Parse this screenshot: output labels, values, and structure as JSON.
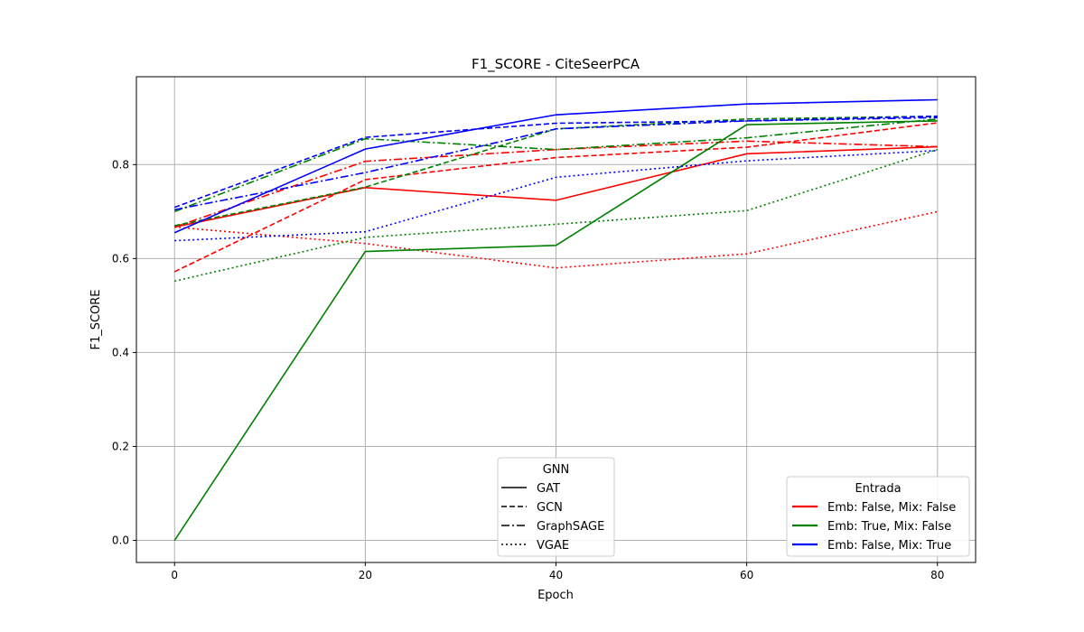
{
  "chart_data": {
    "type": "line",
    "title": "F1_SCORE - CiteSeerPCA",
    "xlabel": "Epoch",
    "ylabel": "F1_SCORE",
    "x": [
      0,
      20,
      40,
      60,
      80
    ],
    "xlim": [
      -4,
      84
    ],
    "ylim": [
      -0.047,
      0.987
    ],
    "xticks": [
      "0",
      "20",
      "40",
      "60",
      "80"
    ],
    "yticks": [
      "0.0",
      "0.2",
      "0.4",
      "0.6",
      "0.8"
    ],
    "grid": true,
    "legend_gnn": {
      "title": "GNN",
      "placement": "bottom-center",
      "entries": [
        {
          "label": "GAT",
          "style": "solid"
        },
        {
          "label": "GCN",
          "style": "dashed"
        },
        {
          "label": "GraphSAGE",
          "style": "dashdot"
        },
        {
          "label": "VGAE",
          "style": "dotted"
        }
      ]
    },
    "legend_entrada": {
      "title": "Entrada",
      "placement": "lower-right",
      "entries": [
        {
          "label": "Emb: False, Mix: False",
          "color": "#ff0000"
        },
        {
          "label": "Emb: True, Mix: False",
          "color": "#008000"
        },
        {
          "label": "Emb: False, Mix: True",
          "color": "#0000ff"
        }
      ]
    },
    "series": [
      {
        "gnn": "GAT",
        "entrada": "Emb: False, Mix: False",
        "color": "#ff0000",
        "style": "solid",
        "values": [
          0.667,
          0.751,
          0.724,
          0.823,
          0.838
        ]
      },
      {
        "gnn": "GCN",
        "entrada": "Emb: False, Mix: False",
        "color": "#ff0000",
        "style": "dashed",
        "values": [
          0.572,
          0.768,
          0.815,
          0.837,
          0.889
        ]
      },
      {
        "gnn": "GraphSAGE",
        "entrada": "Emb: False, Mix: False",
        "color": "#ff0000",
        "style": "dashdot",
        "values": [
          0.667,
          0.807,
          0.832,
          0.85,
          0.838
        ]
      },
      {
        "gnn": "VGAE",
        "entrada": "Emb: False, Mix: False",
        "color": "#ff0000",
        "style": "dotted",
        "values": [
          0.667,
          0.632,
          0.58,
          0.61,
          0.7
        ]
      },
      {
        "gnn": "GAT",
        "entrada": "Emb: True, Mix: False",
        "color": "#008000",
        "style": "solid",
        "values": [
          0.0,
          0.615,
          0.628,
          0.885,
          0.893
        ]
      },
      {
        "gnn": "GCN",
        "entrada": "Emb: True, Mix: False",
        "color": "#008000",
        "style": "dashed",
        "values": [
          0.67,
          0.752,
          0.876,
          0.897,
          0.903
        ]
      },
      {
        "gnn": "GraphSAGE",
        "entrada": "Emb: True, Mix: False",
        "color": "#008000",
        "style": "dashdot",
        "values": [
          0.7,
          0.855,
          0.832,
          0.857,
          0.897
        ]
      },
      {
        "gnn": "VGAE",
        "entrada": "Emb: True, Mix: False",
        "color": "#008000",
        "style": "dotted",
        "values": [
          0.552,
          0.645,
          0.673,
          0.702,
          0.832
        ]
      },
      {
        "gnn": "GAT",
        "entrada": "Emb: False, Mix: True",
        "color": "#0000ff",
        "style": "solid",
        "values": [
          0.655,
          0.833,
          0.906,
          0.929,
          0.938
        ]
      },
      {
        "gnn": "GCN",
        "entrada": "Emb: False, Mix: True",
        "color": "#0000ff",
        "style": "dashed",
        "values": [
          0.709,
          0.858,
          0.888,
          0.893,
          0.903
        ]
      },
      {
        "gnn": "GraphSAGE",
        "entrada": "Emb: False, Mix: True",
        "color": "#0000ff",
        "style": "dashdot",
        "values": [
          0.704,
          0.783,
          0.876,
          0.893,
          0.9
        ]
      },
      {
        "gnn": "VGAE",
        "entrada": "Emb: False, Mix: True",
        "color": "#0000ff",
        "style": "dotted",
        "values": [
          0.638,
          0.657,
          0.773,
          0.808,
          0.83
        ]
      }
    ]
  }
}
